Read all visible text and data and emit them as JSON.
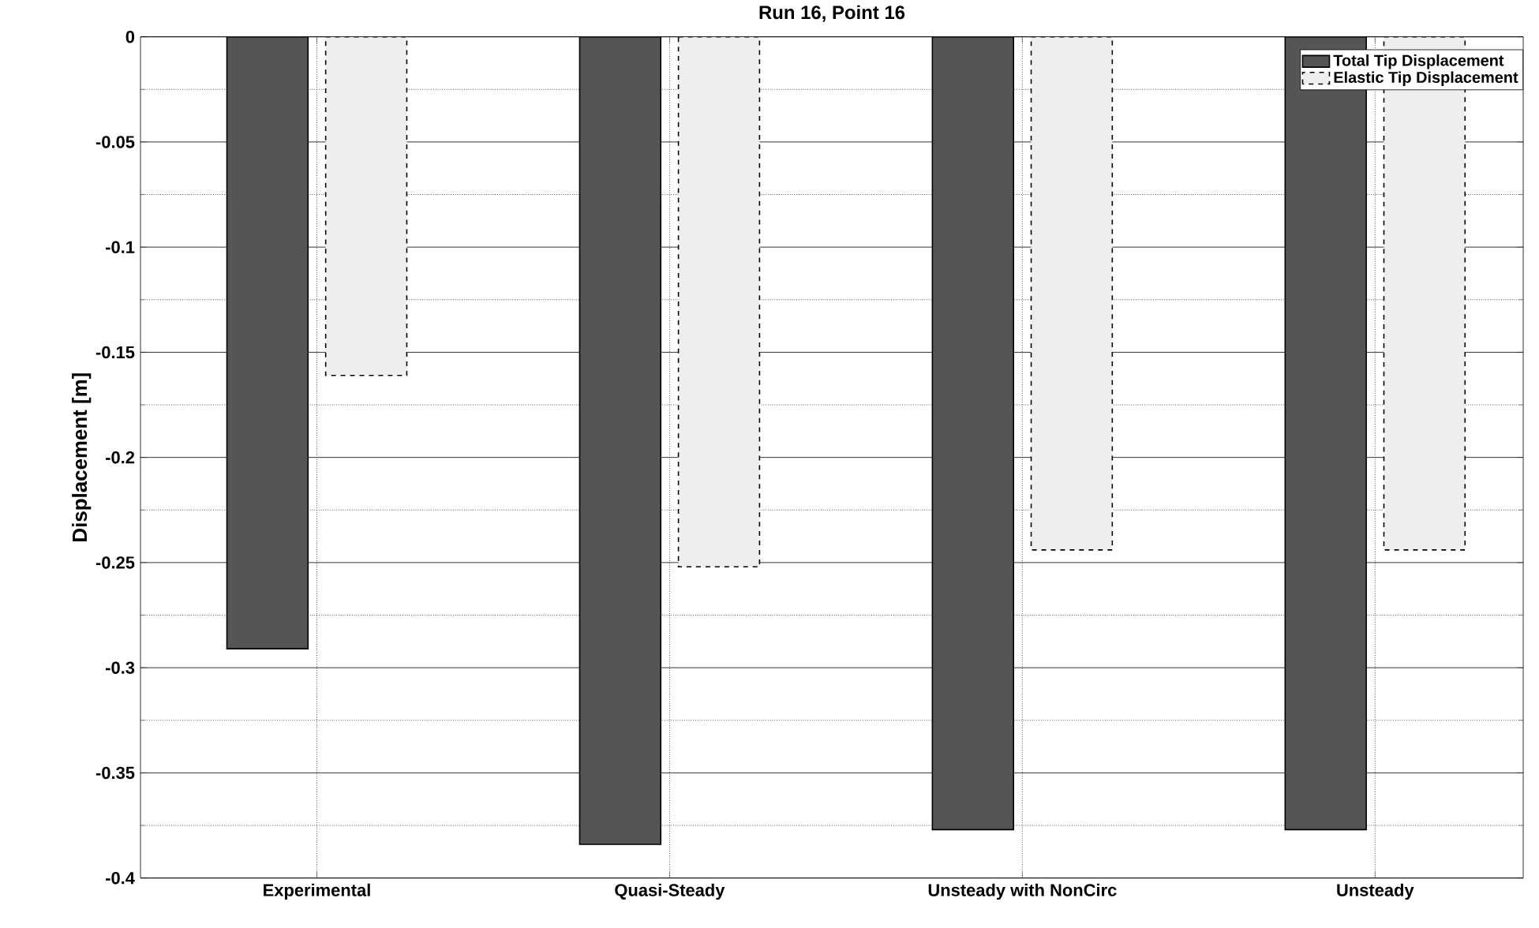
{
  "chart_data": {
    "type": "bar",
    "title": "Run 16, Point 16",
    "ylabel": "Displacement [m]",
    "categories": [
      "Experimental",
      "Quasi-Steady",
      "Unsteady with NonCirc",
      "Unsteady"
    ],
    "series": [
      {
        "name": "Total Tip Displacement",
        "color": "#555555",
        "values": [
          -0.291,
          -0.384,
          -0.377,
          -0.377
        ]
      },
      {
        "name": "Elastic Tip Displacement",
        "color": "#eeeeee",
        "line_style": "dashed",
        "values": [
          -0.161,
          -0.252,
          -0.244,
          -0.244
        ]
      }
    ],
    "ylim": [
      -0.4,
      0
    ],
    "yticks": [
      -0.4,
      -0.35,
      -0.3,
      -0.25,
      -0.2,
      -0.15,
      -0.1,
      -0.05,
      0
    ],
    "grid": true,
    "legend": "top right"
  }
}
